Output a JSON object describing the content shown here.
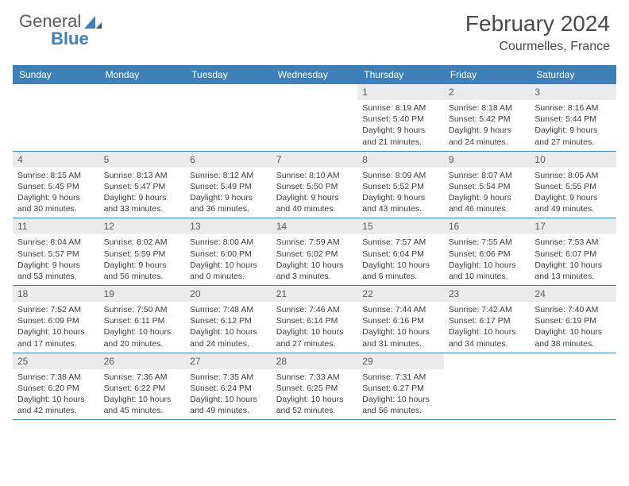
{
  "logo": {
    "text1": "General",
    "text2": "Blue"
  },
  "title": "February 2024",
  "location": "Courmelles, France",
  "colors": {
    "header_bg": "#3d7fb8",
    "daynum_bg": "#ebebeb",
    "page_bg": "#ffffff",
    "text": "#3c3c3c",
    "logo_blue": "#3d7fb8"
  },
  "weekdays": [
    "Sunday",
    "Monday",
    "Tuesday",
    "Wednesday",
    "Thursday",
    "Friday",
    "Saturday"
  ],
  "weeks": [
    [
      null,
      null,
      null,
      null,
      {
        "n": "1",
        "sr": "8:19 AM",
        "ss": "5:40 PM",
        "dl": "9 hours and 21 minutes."
      },
      {
        "n": "2",
        "sr": "8:18 AM",
        "ss": "5:42 PM",
        "dl": "9 hours and 24 minutes."
      },
      {
        "n": "3",
        "sr": "8:16 AM",
        "ss": "5:44 PM",
        "dl": "9 hours and 27 minutes."
      }
    ],
    [
      {
        "n": "4",
        "sr": "8:15 AM",
        "ss": "5:45 PM",
        "dl": "9 hours and 30 minutes."
      },
      {
        "n": "5",
        "sr": "8:13 AM",
        "ss": "5:47 PM",
        "dl": "9 hours and 33 minutes."
      },
      {
        "n": "6",
        "sr": "8:12 AM",
        "ss": "5:49 PM",
        "dl": "9 hours and 36 minutes."
      },
      {
        "n": "7",
        "sr": "8:10 AM",
        "ss": "5:50 PM",
        "dl": "9 hours and 40 minutes."
      },
      {
        "n": "8",
        "sr": "8:09 AM",
        "ss": "5:52 PM",
        "dl": "9 hours and 43 minutes."
      },
      {
        "n": "9",
        "sr": "8:07 AM",
        "ss": "5:54 PM",
        "dl": "9 hours and 46 minutes."
      },
      {
        "n": "10",
        "sr": "8:05 AM",
        "ss": "5:55 PM",
        "dl": "9 hours and 49 minutes."
      }
    ],
    [
      {
        "n": "11",
        "sr": "8:04 AM",
        "ss": "5:57 PM",
        "dl": "9 hours and 53 minutes."
      },
      {
        "n": "12",
        "sr": "8:02 AM",
        "ss": "5:59 PM",
        "dl": "9 hours and 56 minutes."
      },
      {
        "n": "13",
        "sr": "8:00 AM",
        "ss": "6:00 PM",
        "dl": "10 hours and 0 minutes."
      },
      {
        "n": "14",
        "sr": "7:59 AM",
        "ss": "6:02 PM",
        "dl": "10 hours and 3 minutes."
      },
      {
        "n": "15",
        "sr": "7:57 AM",
        "ss": "6:04 PM",
        "dl": "10 hours and 6 minutes."
      },
      {
        "n": "16",
        "sr": "7:55 AM",
        "ss": "6:06 PM",
        "dl": "10 hours and 10 minutes."
      },
      {
        "n": "17",
        "sr": "7:53 AM",
        "ss": "6:07 PM",
        "dl": "10 hours and 13 minutes."
      }
    ],
    [
      {
        "n": "18",
        "sr": "7:52 AM",
        "ss": "6:09 PM",
        "dl": "10 hours and 17 minutes."
      },
      {
        "n": "19",
        "sr": "7:50 AM",
        "ss": "6:11 PM",
        "dl": "10 hours and 20 minutes."
      },
      {
        "n": "20",
        "sr": "7:48 AM",
        "ss": "6:12 PM",
        "dl": "10 hours and 24 minutes."
      },
      {
        "n": "21",
        "sr": "7:46 AM",
        "ss": "6:14 PM",
        "dl": "10 hours and 27 minutes."
      },
      {
        "n": "22",
        "sr": "7:44 AM",
        "ss": "6:16 PM",
        "dl": "10 hours and 31 minutes."
      },
      {
        "n": "23",
        "sr": "7:42 AM",
        "ss": "6:17 PM",
        "dl": "10 hours and 34 minutes."
      },
      {
        "n": "24",
        "sr": "7:40 AM",
        "ss": "6:19 PM",
        "dl": "10 hours and 38 minutes."
      }
    ],
    [
      {
        "n": "25",
        "sr": "7:38 AM",
        "ss": "6:20 PM",
        "dl": "10 hours and 42 minutes."
      },
      {
        "n": "26",
        "sr": "7:36 AM",
        "ss": "6:22 PM",
        "dl": "10 hours and 45 minutes."
      },
      {
        "n": "27",
        "sr": "7:35 AM",
        "ss": "6:24 PM",
        "dl": "10 hours and 49 minutes."
      },
      {
        "n": "28",
        "sr": "7:33 AM",
        "ss": "6:25 PM",
        "dl": "10 hours and 52 minutes."
      },
      {
        "n": "29",
        "sr": "7:31 AM",
        "ss": "6:27 PM",
        "dl": "10 hours and 56 minutes."
      },
      null,
      null
    ]
  ],
  "labels": {
    "sunrise": "Sunrise: ",
    "sunset": "Sunset: ",
    "daylight": "Daylight: "
  }
}
